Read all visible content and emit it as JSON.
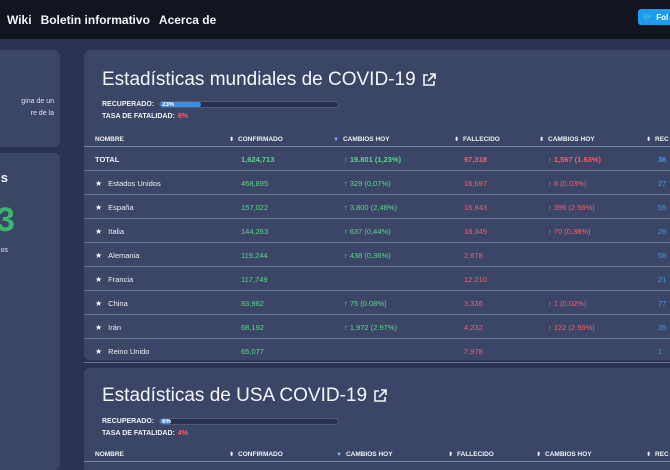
{
  "nav": {
    "links": [
      "Wiki",
      "Boletin informativo",
      "Acerca de"
    ],
    "follow_label": "Fol"
  },
  "sidebar": {
    "card1_lines": [
      "gina de un",
      "re de la"
    ],
    "card2_big": "s",
    "card2_number": "3",
    "card2_small": "os"
  },
  "world": {
    "title": "Estadísticas mundiales de COVID-19",
    "recovered_label": "RECUPERADO:",
    "recovered_pct": "23%",
    "recovered_fraction": 0.23,
    "fatality_label": "TASA DE FATALIDAD:",
    "fatality_value": "6%",
    "headers": {
      "name": "NOMBRE",
      "confirmed": "CONFIRMADO",
      "change": "CAMBIOS HOY",
      "deaths": "FALLECIDO",
      "deaths_change": "CAMBIOS HOY",
      "recovered": "REC"
    },
    "rows": [
      {
        "name": "TOTAL",
        "confirmed": "1,624,713",
        "change": "↑ 19.801 (1,23%)",
        "deaths": "97,318",
        "deaths_change": "↑ 1,567 (1.63%)",
        "recovered": "36"
      },
      {
        "name": "Estados Unidos",
        "confirmed": "468,895",
        "change": "↑ 329 (0,07%)",
        "deaths": "16,697",
        "deaths_change": "↑ 6 (0.03%)",
        "recovered": "27"
      },
      {
        "name": "España",
        "confirmed": "157,022",
        "change": "↑ 3.800 (2,48%)",
        "deaths": "15,843",
        "deaths_change": "↑ 396 (2.56%)",
        "recovered": "55"
      },
      {
        "name": "Italia",
        "confirmed": "144,263",
        "change": "↑ 637 (0,44%)",
        "deaths": "18,349",
        "deaths_change": "↑ 70 (0,38%)",
        "recovered": "28"
      },
      {
        "name": "Alemania",
        "confirmed": "119,244",
        "change": "↑ 438 (0,36%)",
        "deaths": "2,678",
        "deaths_change": "",
        "recovered": "58"
      },
      {
        "name": "Francia",
        "confirmed": "117,749",
        "change": "",
        "deaths": "12,210",
        "deaths_change": "",
        "recovered": "21"
      },
      {
        "name": "China",
        "confirmed": "83,962",
        "change": "↑ 75 (0.08%)",
        "deaths": "3,336",
        "deaths_change": "↑ 1 (0.02%)",
        "recovered": "77"
      },
      {
        "name": "Irán",
        "confirmed": "68,192",
        "change": "↑ 1,972 (2.97%)",
        "deaths": "4,232",
        "deaths_change": "↑ 122 (2.96%)",
        "recovered": "35"
      },
      {
        "name": "Reino Unido",
        "confirmed": "65,077",
        "change": "",
        "deaths": "7,978",
        "deaths_change": "",
        "recovered": "1"
      }
    ]
  },
  "usa": {
    "title": "Estadísticas de USA COVID-19",
    "recovered_label": "RECUPERADO:",
    "recovered_pct": "6%",
    "recovered_fraction": 0.06,
    "fatality_label": "TASA DE FATALIDAD:",
    "fatality_value": "4%",
    "headers": {
      "name": "NOMBRE",
      "confirmed": "CONFIRMADO",
      "change": "CAMBIOS HOY",
      "deaths": "FALLECIDO",
      "deaths_change": "CAMBIOS HOY",
      "recovered": "REC"
    }
  },
  "colors": {
    "background": "#2b3353",
    "panel": "#3b4566",
    "nav": "#111520",
    "positive": "#5fd58d",
    "negative": "#ff5c6c",
    "recovered": "#3c9be8"
  }
}
